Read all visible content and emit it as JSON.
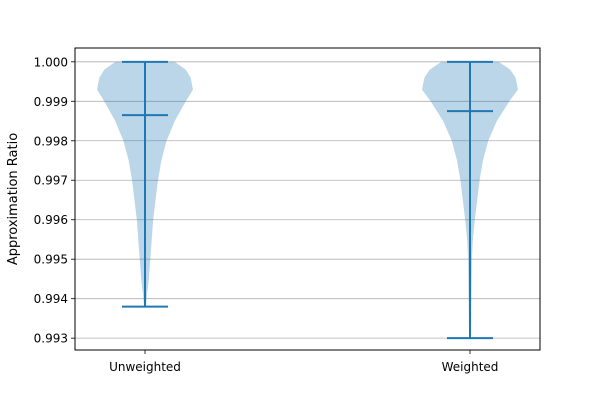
{
  "chart_data": {
    "type": "violin",
    "title": "",
    "xlabel": "",
    "ylabel": "Approximation Ratio",
    "ylim": [
      0.9927,
      1.00035
    ],
    "yticks": [
      0.993,
      0.994,
      0.995,
      0.996,
      0.997,
      0.998,
      0.999,
      1.0
    ],
    "ytick_labels": [
      "0.993",
      "0.994",
      "0.995",
      "0.996",
      "0.997",
      "0.998",
      "0.999",
      "1.000"
    ],
    "grid": "horizontal",
    "violin_color": "#1f77b4",
    "categories": [
      "Unweighted",
      "Weighted"
    ],
    "series": [
      {
        "category": "Unweighted",
        "min": 0.9938,
        "mean": 0.99865,
        "max": 1.0,
        "density": [
          [
            0.9938,
            0.02
          ],
          [
            0.9941,
            0.04
          ],
          [
            0.9945,
            0.08
          ],
          [
            0.995,
            0.11
          ],
          [
            0.9955,
            0.14
          ],
          [
            0.996,
            0.17
          ],
          [
            0.9965,
            0.22
          ],
          [
            0.997,
            0.27
          ],
          [
            0.9975,
            0.34
          ],
          [
            0.998,
            0.45
          ],
          [
            0.9985,
            0.62
          ],
          [
            0.999,
            0.85
          ],
          [
            0.9993,
            1.0
          ],
          [
            0.9996,
            0.95
          ],
          [
            0.9998,
            0.85
          ],
          [
            1.0,
            0.62
          ]
        ]
      },
      {
        "category": "Weighted",
        "min": 0.993,
        "mean": 0.99875,
        "max": 1.0,
        "density": [
          [
            0.993,
            0.02
          ],
          [
            0.994,
            0.03
          ],
          [
            0.995,
            0.04
          ],
          [
            0.9955,
            0.06
          ],
          [
            0.996,
            0.1
          ],
          [
            0.9965,
            0.15
          ],
          [
            0.997,
            0.2
          ],
          [
            0.9975,
            0.27
          ],
          [
            0.998,
            0.38
          ],
          [
            0.9985,
            0.56
          ],
          [
            0.999,
            0.82
          ],
          [
            0.9993,
            1.0
          ],
          [
            0.9996,
            0.95
          ],
          [
            0.9998,
            0.84
          ],
          [
            1.0,
            0.6
          ]
        ]
      }
    ]
  }
}
